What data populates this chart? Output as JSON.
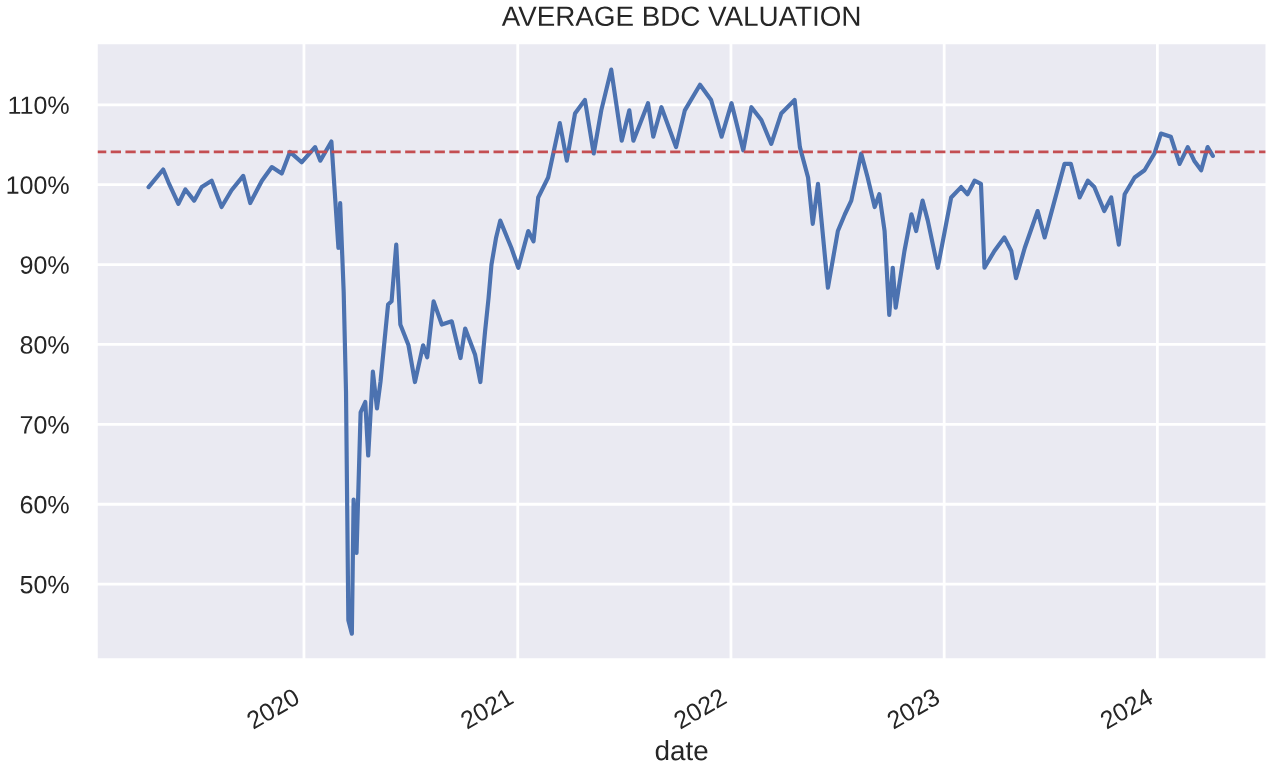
{
  "chart_data": {
    "type": "line",
    "title": "AVERAGE BDC VALUATION",
    "xlabel": "date",
    "x": [
      "2019-04-10",
      "2019-05-05",
      "2019-05-14",
      "2019-05-31",
      "2019-06-12",
      "2019-06-27",
      "2019-07-10",
      "2019-07-27",
      "2019-08-13",
      "2019-08-30",
      "2019-09-19",
      "2019-10-01",
      "2019-10-21",
      "2019-11-07",
      "2019-11-24",
      "2019-12-08",
      "2019-12-28",
      "2020-01-20",
      "2020-01-29",
      "2020-02-17",
      "2020-02-23",
      "2020-02-29",
      "2020-03-03",
      "2020-03-09",
      "2020-03-13",
      "2020-03-17",
      "2020-03-23",
      "2020-03-26",
      "2020-03-31",
      "2020-04-07",
      "2020-04-15",
      "2020-04-20",
      "2020-04-28",
      "2020-05-05",
      "2020-05-11",
      "2020-05-24",
      "2020-05-30",
      "2020-06-07",
      "2020-06-14",
      "2020-06-28",
      "2020-07-09",
      "2020-07-23",
      "2020-07-30",
      "2020-08-10",
      "2020-08-24",
      "2020-09-10",
      "2020-09-25",
      "2020-10-03",
      "2020-10-20",
      "2020-10-29",
      "2020-11-06",
      "2020-11-12",
      "2020-11-17",
      "2020-11-25",
      "2020-12-02",
      "2020-12-21",
      "2021-01-02",
      "2021-01-19",
      "2021-01-28",
      "2021-02-05",
      "2021-02-22",
      "2021-03-14",
      "2021-03-26",
      "2021-04-09",
      "2021-04-26",
      "2021-05-11",
      "2021-05-24",
      "2021-06-10",
      "2021-06-28",
      "2021-07-11",
      "2021-07-18",
      "2021-08-12",
      "2021-08-21",
      "2021-09-04",
      "2021-09-29",
      "2021-10-14",
      "2021-11-09",
      "2021-11-28",
      "2021-12-16",
      "2022-01-02",
      "2022-01-22",
      "2022-02-05",
      "2022-02-22",
      "2022-03-11",
      "2022-03-28",
      "2022-04-20",
      "2022-04-29",
      "2022-05-13",
      "2022-05-21",
      "2022-05-30",
      "2022-06-16",
      "2022-07-03",
      "2022-07-15",
      "2022-07-26",
      "2022-08-12",
      "2022-08-23",
      "2022-09-04",
      "2022-09-12",
      "2022-09-21",
      "2022-09-29",
      "2022-10-05",
      "2022-10-10",
      "2022-10-25",
      "2022-11-06",
      "2022-11-14",
      "2022-11-25",
      "2022-12-04",
      "2022-12-21",
      "2023-01-02",
      "2023-01-13",
      "2023-01-30",
      "2023-02-10",
      "2023-02-22",
      "2023-03-05",
      "2023-03-11",
      "2023-03-28",
      "2023-04-14",
      "2023-04-26",
      "2023-05-04",
      "2023-05-19",
      "2023-06-10",
      "2023-06-22",
      "2023-07-09",
      "2023-07-26",
      "2023-08-06",
      "2023-08-21",
      "2023-09-04",
      "2023-09-15",
      "2023-10-02",
      "2023-10-14",
      "2023-10-27",
      "2023-11-06",
      "2023-11-23",
      "2023-12-10",
      "2023-12-27",
      "2024-01-07",
      "2024-01-24",
      "2024-02-08",
      "2024-02-22",
      "2024-03-04",
      "2024-03-16",
      "2024-03-27",
      "2024-04-05"
    ],
    "series": [
      {
        "color": "#4c72b0",
        "values": [
          99.7,
          101.9,
          100.3,
          97.6,
          99.4,
          98.0,
          99.7,
          100.5,
          97.2,
          99.3,
          101.1,
          97.7,
          100.5,
          102.2,
          101.4,
          104.1,
          102.8,
          104.7,
          103.0,
          105.4,
          98.8,
          92.1,
          97.7,
          86.6,
          74.1,
          45.5,
          43.8,
          60.6,
          53.9,
          71.5,
          72.8,
          66.1,
          76.6,
          72.0,
          75.3,
          85.0,
          85.4,
          92.5,
          82.5,
          79.9,
          75.3,
          79.9,
          78.4,
          85.4,
          82.5,
          82.9,
          78.3,
          82.0,
          78.7,
          75.3,
          81.6,
          85.8,
          90.0,
          93.4,
          95.5,
          92.1,
          89.6,
          94.2,
          92.9,
          98.4,
          100.9,
          107.7,
          103.0,
          108.9,
          110.6,
          103.9,
          109.3,
          114.4,
          105.5,
          109.3,
          105.5,
          110.2,
          106.0,
          109.7,
          104.7,
          109.3,
          112.5,
          110.6,
          106.0,
          110.2,
          104.3,
          109.7,
          108.1,
          105.1,
          108.9,
          110.6,
          104.7,
          100.9,
          95.1,
          100.1,
          87.1,
          94.2,
          96.3,
          98.0,
          103.9,
          100.9,
          97.2,
          98.8,
          94.2,
          83.7,
          89.6,
          84.6,
          91.7,
          96.3,
          94.2,
          98.0,
          95.5,
          89.6,
          94.2,
          98.4,
          99.7,
          98.8,
          100.5,
          100.1,
          89.6,
          91.7,
          93.4,
          91.7,
          88.3,
          92.1,
          96.7,
          93.4,
          98.0,
          102.6,
          102.6,
          98.4,
          100.5,
          99.7,
          96.7,
          98.4,
          92.5,
          98.8,
          100.9,
          101.8,
          103.9,
          106.4,
          106.0,
          102.6,
          104.7,
          103.0,
          101.8,
          104.7,
          103.6
        ]
      }
    ],
    "xlim": [
      "2019-01-10",
      "2024-07-07"
    ],
    "xticks": [
      {
        "value": "2020-01-01",
        "label": "2020"
      },
      {
        "value": "2021-01-01",
        "label": "2021"
      },
      {
        "value": "2022-01-01",
        "label": "2022"
      },
      {
        "value": "2023-01-01",
        "label": "2023"
      },
      {
        "value": "2024-01-01",
        "label": "2024"
      }
    ],
    "ylim": [
      40.5,
      117.8
    ],
    "yticks": [
      {
        "value": 50,
        "label": "50%"
      },
      {
        "value": 60,
        "label": "60%"
      },
      {
        "value": 70,
        "label": "70%"
      },
      {
        "value": 80,
        "label": "80%"
      },
      {
        "value": 90,
        "label": "90%"
      },
      {
        "value": 100,
        "label": "100%"
      },
      {
        "value": 110,
        "label": "110%"
      }
    ],
    "ref_lines": [
      {
        "axis": "y",
        "value": 104.1,
        "color": "#c44e52",
        "line_style": "dashed"
      }
    ],
    "grid": true,
    "legend": false
  }
}
